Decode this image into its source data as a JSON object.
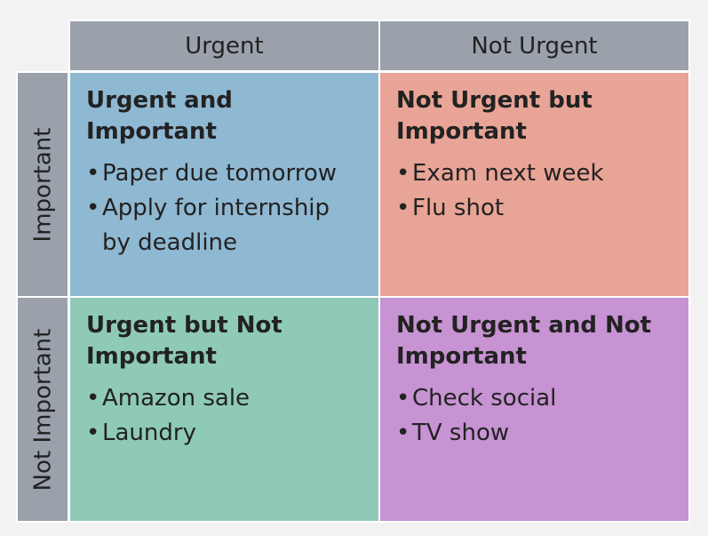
{
  "columns": {
    "urgent": "Urgent",
    "not_urgent": "Not Urgent"
  },
  "rows": {
    "important": "Important",
    "not_important": "Not Important"
  },
  "quadrants": {
    "urgent_important": {
      "title": "Urgent and Important",
      "color": "#8fb8d2",
      "items": [
        "Paper due tomorrow",
        "Apply for internship by deadline"
      ]
    },
    "not_urgent_important": {
      "title": "Not Urgent but Important",
      "color": "#e8a496",
      "items": [
        "Exam next week",
        "Flu shot"
      ]
    },
    "urgent_not_important": {
      "title": "Urgent but Not Important",
      "color": "#8fcab9",
      "items": [
        "Amazon sale",
        "Laundry"
      ]
    },
    "not_urgent_not_important": {
      "title": "Not Urgent and Not Important",
      "color": "#c793d2",
      "items": [
        "Check social",
        "TV show"
      ]
    }
  },
  "header_color": "#9aa1ab"
}
